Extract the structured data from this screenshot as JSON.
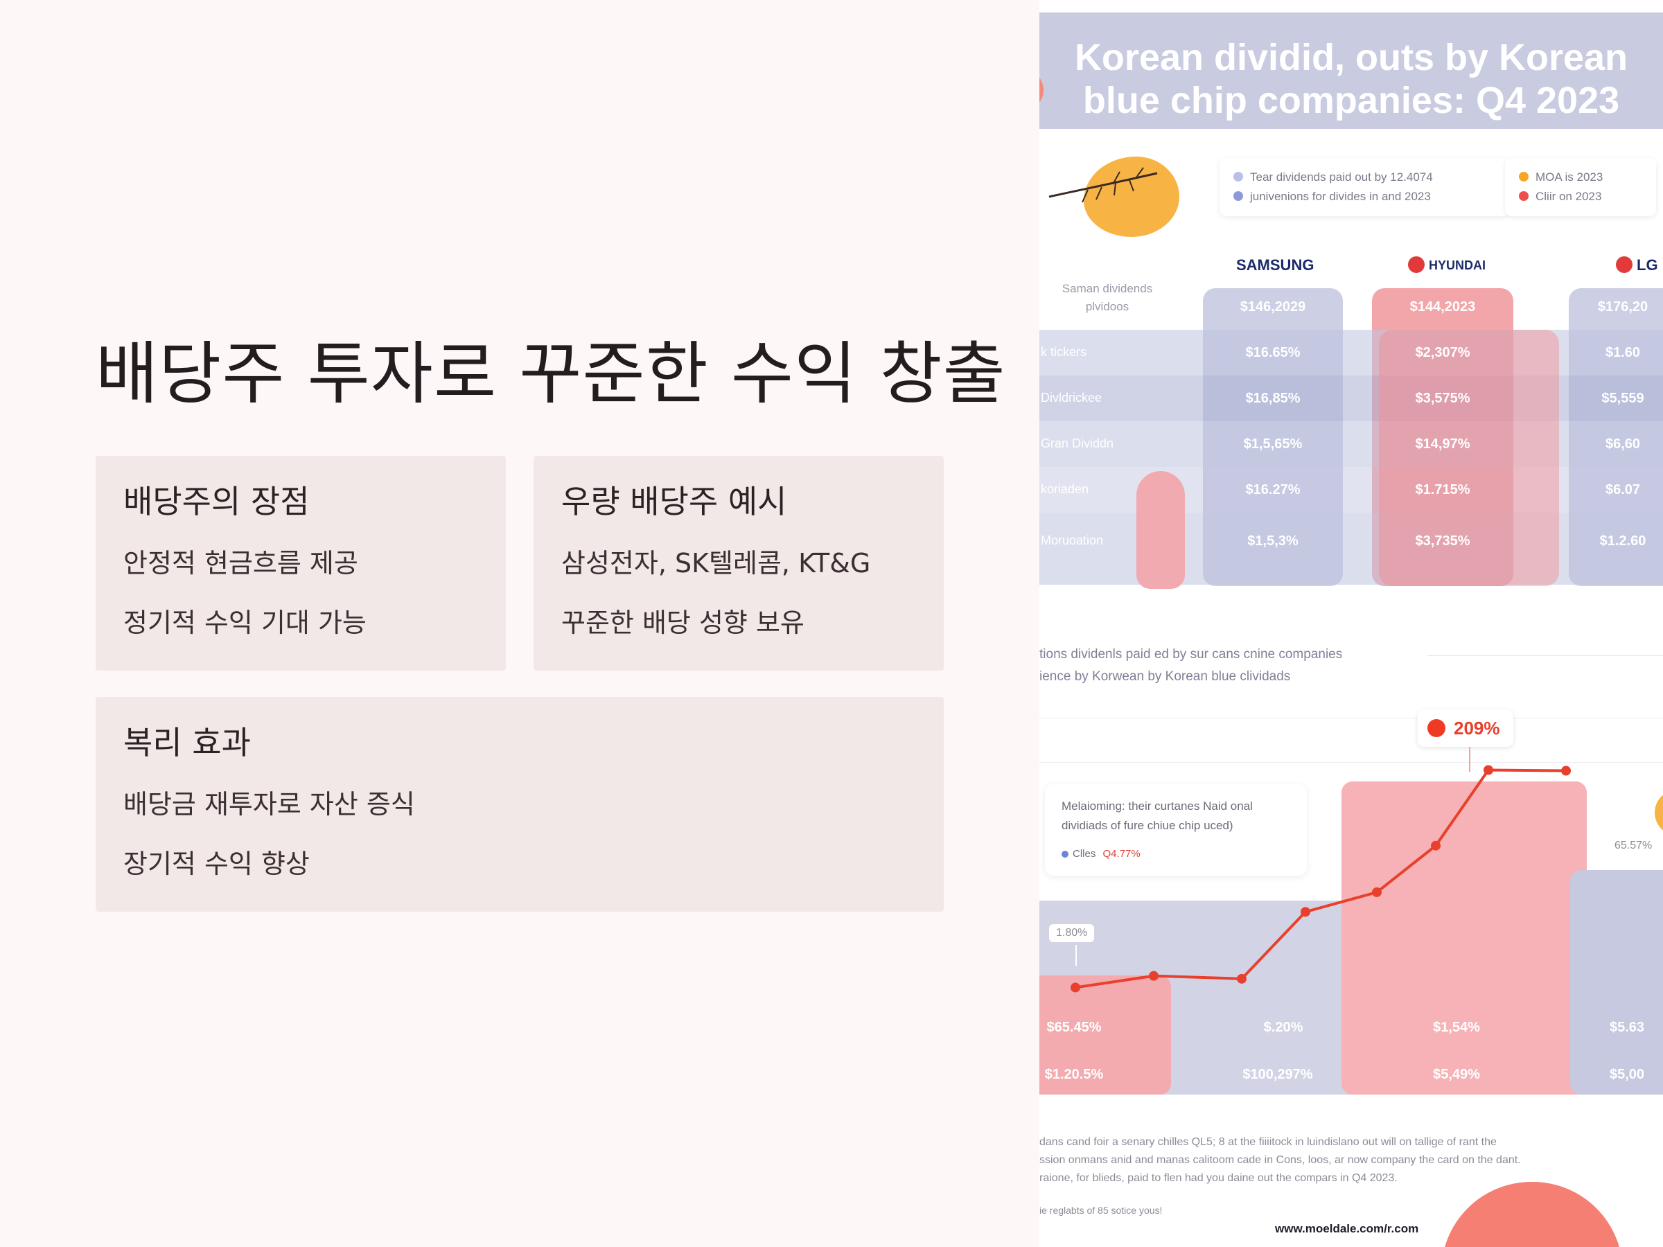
{
  "slide": {
    "title": "배당주 투자로 꾸준한 수익 창출",
    "cards": [
      {
        "heading": "배당주의 장점",
        "lines": [
          "안정적 현금흐름 제공",
          "정기적 수익 기대 가능"
        ]
      },
      {
        "heading": "우량 배당주 예시",
        "lines": [
          "삼성전자, SK텔레콤, KT&G",
          "꾸준한 배당 성향 보유"
        ]
      },
      {
        "heading": "복리 효과",
        "lines": [
          "배당금 재투자로 자산 증식",
          "장기적 수익 향상"
        ]
      }
    ]
  },
  "infographic": {
    "title": "Korean dividid, outs by Korean blue chip companies: Q4 2023",
    "legend_left": [
      "Tear dividends paid out by 12.4074",
      "junivenions for divides in and 2023"
    ],
    "legend_right": [
      "MOA is 2023",
      "Cliir on 2023"
    ],
    "colors": {
      "blue": "#9aa3d8",
      "red": "#ef4e4e",
      "orange": "#f5a623",
      "pink": "#f5b5b8",
      "grey": "#c9cbe1"
    },
    "header_label": "Saman dividends plvidoos",
    "brands": [
      "SAMSUNG",
      "HYUNDAI",
      "LG"
    ],
    "col_headers": [
      "$146,2029",
      "$144,2023",
      "$176,20"
    ],
    "rows": [
      {
        "label": "k tickers",
        "values": [
          "$16.65%",
          "$2,307%",
          "$1.60"
        ]
      },
      {
        "label": "Divldrickee",
        "values": [
          "$16,85%",
          "$3,575%",
          "$5,559"
        ]
      },
      {
        "label": "Gran Dividdn",
        "values": [
          "$1,5,65%",
          "$14,97%",
          "$6,60"
        ]
      },
      {
        "label": "koriaden",
        "values": [
          "$16.27%",
          "$1.715%",
          "$6.07"
        ]
      },
      {
        "label": "Moruoation",
        "values": [
          "$1,5,3%",
          "$3,735%",
          "$1.2.60"
        ]
      }
    ],
    "section_line1": "tions dividenls paid ed by sur cans cnine companies",
    "section_line2": "ience by Korwean by Korean blue clividads",
    "callout_value": "209%",
    "note_lines": [
      "Melaioming: their curtanes Naid onal",
      "dividiads of fure chiue chip uced)"
    ],
    "note_legend": "Clles",
    "note_value": "Q4.77%",
    "left_tag": "1.80%",
    "right_tag": "65.57%",
    "bottom_row1": [
      "$65.45%",
      "$.20%",
      "$1,54%",
      "$5.63"
    ],
    "bottom_row2": [
      "$1.20.5%",
      "$100,297%",
      "$5,49%",
      "$5,00"
    ],
    "footer_lines": [
      "dans cand foir a senary chilles QL5; 8 at the fiiiitock in luindislano out will on tallige of rant the",
      "ssion onmans anid and manas calitoom cade in Cons, loos, ar now company the card on the dant.",
      "raione, for blieds, paid to flen had you daine out the compars in Q4 2023."
    ],
    "footer_small": "ie reglabts of 85 sotice yous!",
    "url": "www.moeldale.com/r.com",
    "line_series": [
      0.71,
      0.87,
      0.83,
      1.75,
      2.02,
      2.66,
      3.7,
      3.69
    ]
  }
}
